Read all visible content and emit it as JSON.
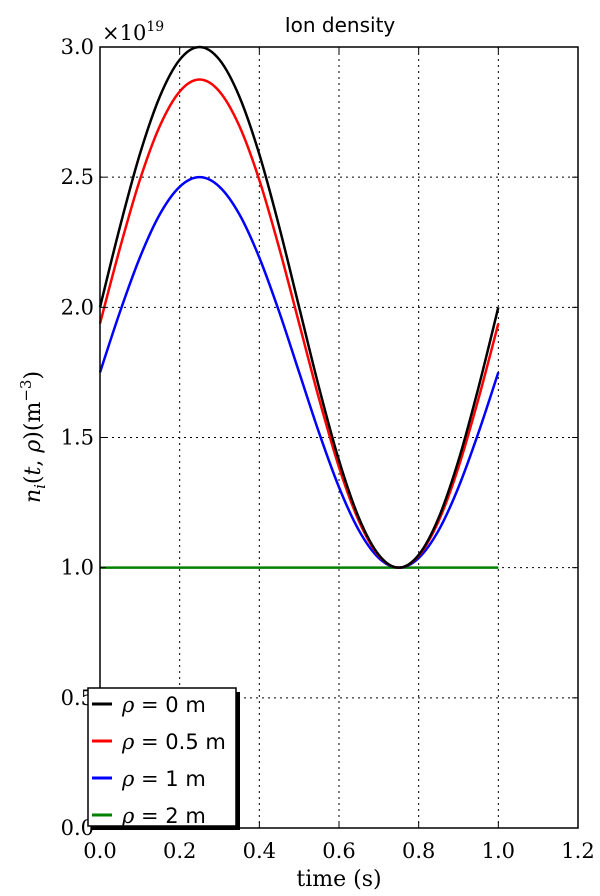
{
  "chart_data": {
    "type": "line",
    "title": "Ion density",
    "xlabel": "time (s)",
    "ylabel": "n_i(t,ρ)(m^-3)",
    "xlim": [
      0.0,
      1.2
    ],
    "ylim": [
      0.0,
      3.0
    ],
    "x_ticks": [
      "0.0",
      "0.2",
      "0.4",
      "0.6",
      "0.8",
      "1.0",
      "1.2"
    ],
    "y_ticks": [
      "0.0",
      "0.5",
      "1.0",
      "1.5",
      "2.0",
      "2.5",
      "3.0"
    ],
    "y_multiplier": "×10",
    "y_multiplier_exp": "19",
    "grid": true,
    "legend_position": "lower-left",
    "x": [
      0.0,
      0.05,
      0.1,
      0.15,
      0.2,
      0.25,
      0.3,
      0.35,
      0.4,
      0.45,
      0.5,
      0.55,
      0.6,
      0.65,
      0.7,
      0.75,
      0.8,
      0.85,
      0.9,
      0.95,
      1.0
    ],
    "series": [
      {
        "label_prefix": "ρ = ",
        "label_suffix": "0 m",
        "color": "#000000",
        "values": [
          2.0,
          2.309,
          2.588,
          2.809,
          2.951,
          3.0,
          2.951,
          2.809,
          2.588,
          2.309,
          2.0,
          1.691,
          1.412,
          1.191,
          1.049,
          1.0,
          1.049,
          1.191,
          1.412,
          1.691,
          2.0
        ]
      },
      {
        "label_prefix": "ρ = ",
        "label_suffix": "0.5 m",
        "color": "#ff0000",
        "values": [
          1.9375,
          2.227,
          2.489,
          2.696,
          2.829,
          2.875,
          2.829,
          2.696,
          2.489,
          2.227,
          1.9375,
          1.648,
          1.386,
          1.179,
          1.046,
          1.0,
          1.046,
          1.179,
          1.386,
          1.648,
          1.9375
        ]
      },
      {
        "label_prefix": "ρ = ",
        "label_suffix": "1 m",
        "color": "#0000ff",
        "values": [
          1.75,
          1.982,
          2.191,
          2.357,
          2.463,
          2.5,
          2.463,
          2.357,
          2.191,
          1.982,
          1.75,
          1.518,
          1.309,
          1.143,
          1.037,
          1.0,
          1.037,
          1.143,
          1.309,
          1.518,
          1.75
        ]
      },
      {
        "label_prefix": "ρ = ",
        "label_suffix": "2 m",
        "color": "#008000",
        "values": [
          1.0,
          1.0,
          1.0,
          1.0,
          1.0,
          1.0,
          1.0,
          1.0,
          1.0,
          1.0,
          1.0,
          1.0,
          1.0,
          1.0,
          1.0,
          1.0,
          1.0,
          1.0,
          1.0,
          1.0,
          1.0
        ]
      }
    ]
  }
}
